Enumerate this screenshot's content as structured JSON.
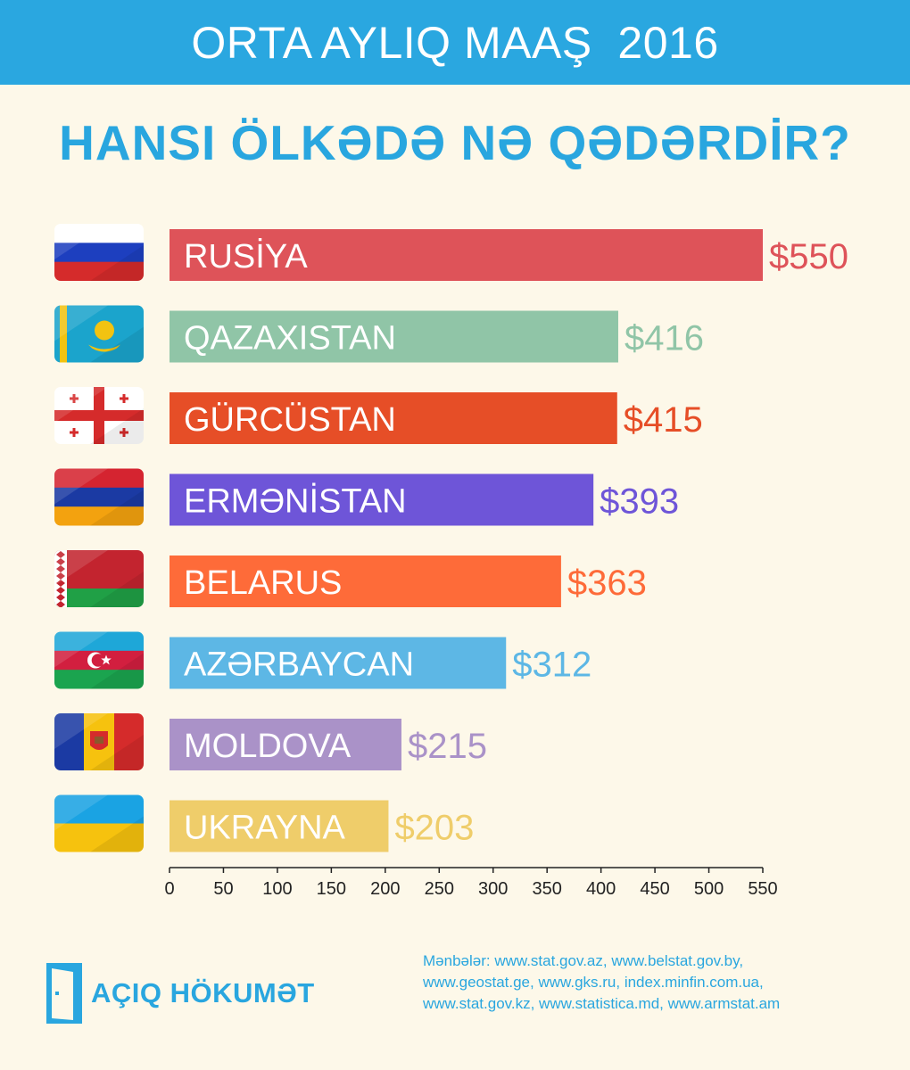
{
  "header": {
    "title": "ORTA AYLIQ MAAŞ  2016"
  },
  "subtitle": "HANSI ÖLKƏDƏ NƏ QƏDƏRDİR?",
  "chart_data": {
    "type": "bar",
    "orientation": "horizontal",
    "categories": [
      "RUSİYA",
      "QAZAXISTAN",
      "GÜRCÜSTAN",
      "ERMƏNİSTAN",
      "BELARUS",
      "AZƏRBAYCAN",
      "MOLDOVA",
      "UKRAYNA"
    ],
    "values": [
      550,
      416,
      415,
      393,
      363,
      312,
      215,
      203
    ],
    "value_labels": [
      "$550",
      "$416",
      "$415",
      "$393",
      "$363",
      "$312",
      "$215",
      "$203"
    ],
    "colors": [
      "#de5359",
      "#90c5a7",
      "#e64e27",
      "#6e55d8",
      "#fe6b39",
      "#5db7e5",
      "#aa92c8",
      "#efcd6a"
    ],
    "flags": [
      "russia-flag",
      "kazakhstan-flag",
      "georgia-flag",
      "armenia-flag",
      "belarus-flag",
      "azerbaijan-flag",
      "moldova-flag",
      "ukraine-flag"
    ],
    "xlim": [
      0,
      550
    ],
    "xticks": [
      0,
      50,
      100,
      150,
      200,
      250,
      300,
      350,
      400,
      450,
      500,
      550
    ],
    "grid": false,
    "legend": "none"
  },
  "sources": {
    "lines": [
      "Mənbələr:  www.stat.gov.az, www.belstat.gov.by,",
      "www.geostat.ge, www.gks.ru, index.minfin.com.ua,",
      "www.stat.gov.kz, www.statistica.md, www.armstat.am"
    ]
  },
  "logo": {
    "text": "AÇIQ HÖKUMƏT",
    "icon": "open-door-icon",
    "color": "#29a6df"
  }
}
